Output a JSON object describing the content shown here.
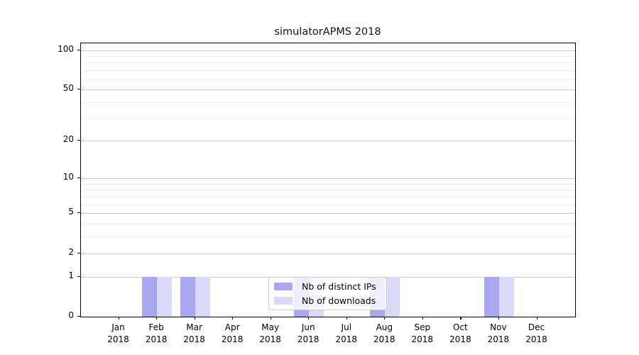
{
  "chart_data": {
    "type": "bar",
    "title": "simulatorAPMS 2018",
    "xlabel": "",
    "ylabel": "",
    "categories": [
      "Jan",
      "Feb",
      "Mar",
      "Apr",
      "May",
      "Jun",
      "Jul",
      "Aug",
      "Sep",
      "Oct",
      "Nov",
      "Dec"
    ],
    "category_year": "2018",
    "series": [
      {
        "name": "Nb of distinct IPs",
        "color": "#a8a8f0",
        "values": [
          0,
          1,
          1,
          0,
          0,
          1,
          0,
          1,
          0,
          0,
          1,
          0
        ]
      },
      {
        "name": "Nb of downloads",
        "color": "#d9d9f8",
        "values": [
          0,
          1,
          1,
          0,
          0,
          1,
          0,
          1,
          0,
          0,
          1,
          0
        ]
      }
    ],
    "yscale": "log1p",
    "ylim": [
      0,
      112.5
    ],
    "yticks_major": [
      0,
      1,
      2,
      5,
      10,
      20,
      50,
      100
    ],
    "gridlines_major": [
      1,
      2,
      5,
      10,
      20,
      50,
      100
    ],
    "gridlines_minor": [
      3,
      4,
      6,
      7,
      8,
      9,
      30,
      40,
      60,
      70,
      80,
      90
    ],
    "grid": true,
    "legend_position": "lower center"
  },
  "colors": {
    "spine": "#000000",
    "grid_major": "#c9c9c9",
    "grid_minor": "#ededed",
    "legend_border": "#cccccc"
  }
}
